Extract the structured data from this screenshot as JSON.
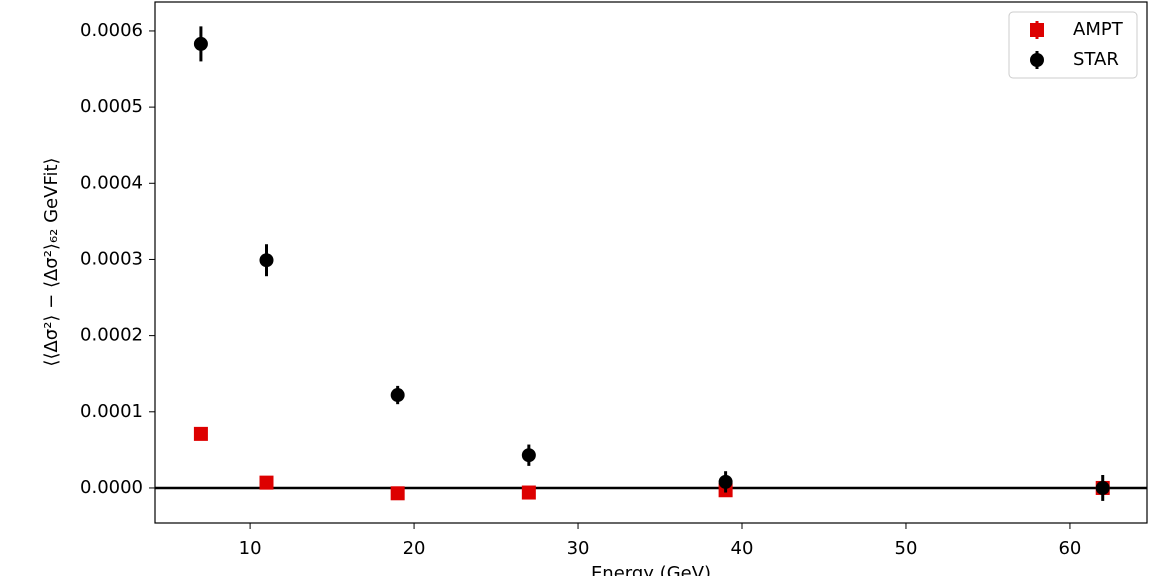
{
  "chart_data": {
    "type": "errorbar",
    "xlabel": "Energy (GeV)",
    "ylabel": "⟨⟨Δσ²⟩ − ⟨Δσ²⟩₆₂ GeVFit⟩",
    "x": [
      7,
      11,
      19,
      27,
      39,
      62
    ],
    "series": [
      {
        "name": "AMPT",
        "color": "#dd0000",
        "marker": "square",
        "values": [
          7.1e-05,
          7e-06,
          -7e-06,
          -6e-06,
          -3e-06,
          0.0
        ],
        "errors": [
          2e-06,
          2e-06,
          2e-06,
          2e-06,
          2e-06,
          2e-06
        ]
      },
      {
        "name": "STAR",
        "color": "#000000",
        "marker": "circle",
        "values": [
          0.000583,
          0.000299,
          0.000122,
          4.3e-05,
          8e-06,
          0.0
        ],
        "errors": [
          2.3e-05,
          2.1e-05,
          1.2e-05,
          1.4e-05,
          1.4e-05,
          1.7e-05
        ]
      }
    ],
    "hline": 0,
    "xlim": [
      4.2,
      64.7
    ],
    "xticks": [
      10,
      20,
      30,
      40,
      50,
      60
    ],
    "ylim": [
      -4.6e-05,
      0.000638
    ],
    "yticks": [
      {
        "value": 0,
        "label": "0.0000"
      },
      {
        "value": 0.0001,
        "label": "0.0001"
      },
      {
        "value": 0.0002,
        "label": "0.0002"
      },
      {
        "value": 0.0003,
        "label": "0.0003"
      },
      {
        "value": 0.0004,
        "label": "0.0004"
      },
      {
        "value": 0.0005,
        "label": "0.0005"
      },
      {
        "value": 0.0006,
        "label": "0.0006"
      }
    ],
    "legend": "upper right"
  }
}
